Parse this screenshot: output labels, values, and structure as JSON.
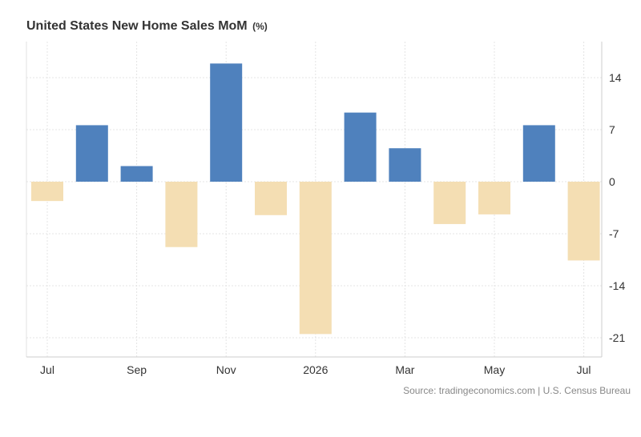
{
  "chart_data": {
    "type": "bar",
    "title": "United States New Home Sales MoM",
    "unit": "(%)",
    "x_tick_labels": [
      "Jul",
      "Sep",
      "Nov",
      "2026",
      "Mar",
      "May",
      "Jul"
    ],
    "bar_periods": [
      "Jul 2025",
      "Aug 2025",
      "Sep 2025",
      "Oct 2025",
      "Nov 2025",
      "Dec 2025",
      "Jan 2026",
      "Feb 2026",
      "Mar 2026",
      "Apr 2026",
      "May 2026",
      "Jun 2026",
      "Jul 2026"
    ],
    "values": [
      -2.6,
      7.6,
      2.1,
      -8.8,
      15.9,
      -4.5,
      -20.5,
      9.3,
      4.5,
      -5.7,
      -4.4,
      7.6,
      -10.6
    ],
    "y_ticks": [
      14,
      7,
      0,
      -7,
      -14,
      -21
    ],
    "ylim": [
      -24,
      17
    ],
    "y_axis_position": "right",
    "grid": true,
    "colors": {
      "positive": "#4f81bd",
      "negative": "#f4deb3",
      "grid": "#e4e4e4",
      "axis_text": "#333333"
    }
  },
  "source": "Source: tradingeconomics.com | U.S. Census Bureau"
}
